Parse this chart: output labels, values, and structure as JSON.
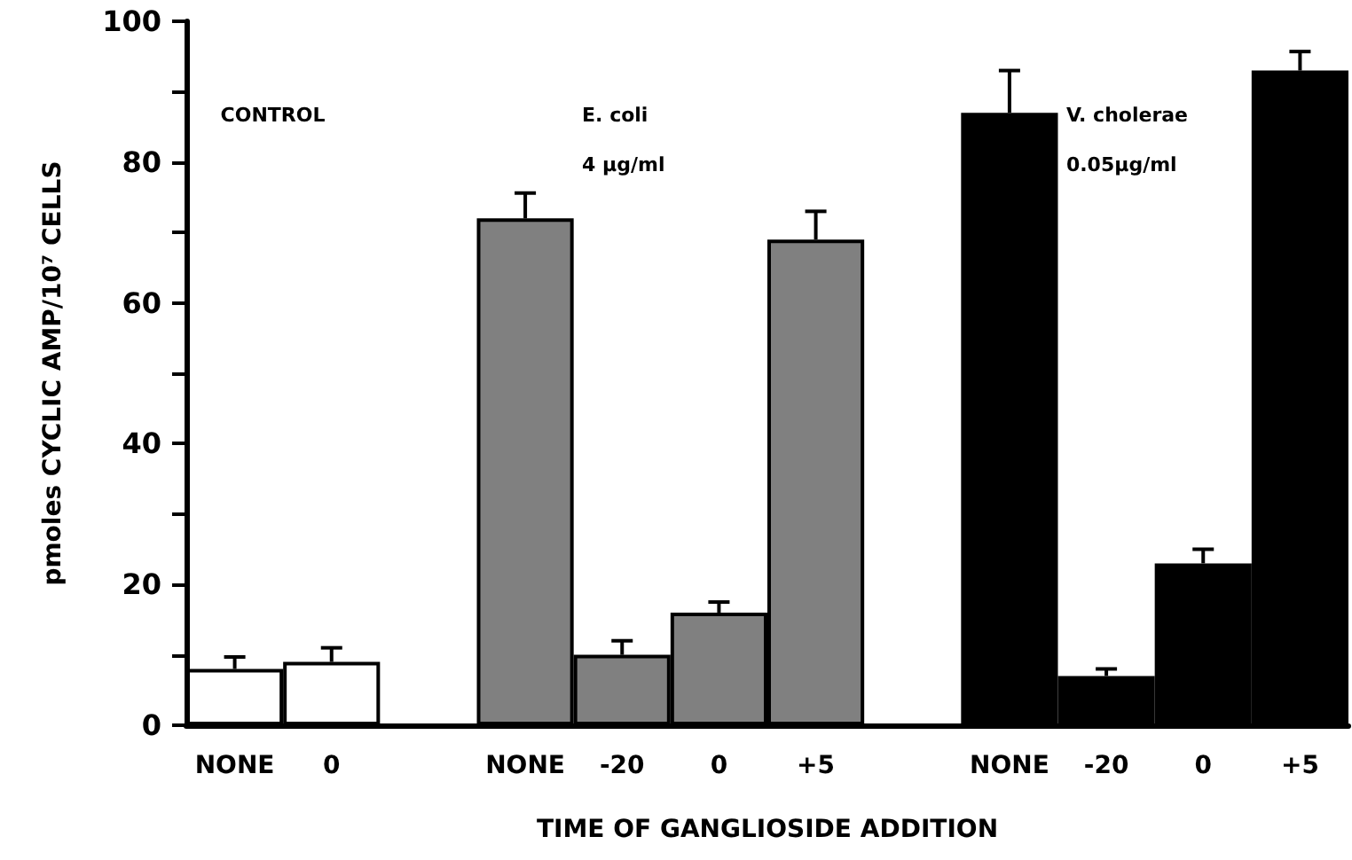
{
  "chart_data": {
    "type": "bar",
    "xlabel": "TIME OF GANGLIOSIDE ADDITION",
    "ylabel": "pmoles CYCLIC AMP/10⁷ CELLS",
    "categories": [
      "NONE",
      "0",
      null,
      "NONE",
      "-20",
      "0",
      "+5",
      null,
      "NONE",
      "-20",
      "0",
      "+5"
    ],
    "series": [
      {
        "color": "#ffffff",
        "values": [
          8,
          9,
          null,
          null,
          null,
          null,
          null,
          null,
          null,
          null,
          null,
          null
        ],
        "errors": [
          [
            8,
            9.7
          ],
          [
            9,
            11
          ],
          null,
          null,
          null,
          null,
          null,
          null,
          null,
          null,
          null,
          null
        ]
      },
      {
        "color": "#808080",
        "values": [
          null,
          null,
          null,
          72,
          10,
          16,
          69,
          null,
          null,
          null,
          null,
          null
        ],
        "errors": [
          null,
          null,
          null,
          [
            72,
            75.6
          ],
          [
            10,
            12
          ],
          [
            16,
            17.5
          ],
          [
            69,
            73
          ],
          null,
          null,
          null,
          null,
          null
        ]
      },
      {
        "color": "#000000",
        "values": [
          null,
          null,
          null,
          null,
          null,
          null,
          null,
          null,
          87,
          7,
          23,
          93
        ],
        "errors": [
          null,
          null,
          null,
          null,
          null,
          null,
          null,
          null,
          [
            87,
            93
          ],
          [
            7,
            8
          ],
          [
            23,
            25
          ],
          [
            93,
            95.7
          ]
        ]
      }
    ],
    "annotations": [
      "CONTROL",
      "E. coli",
      "4 µg/ml",
      "V. cholerae",
      "0.05µg/ml"
    ],
    "ylim": [
      0,
      100
    ],
    "yticks": [
      0,
      {
        "value": 10,
        "label": null
      },
      20,
      {
        "value": 30,
        "label": null
      },
      40,
      {
        "value": 50,
        "label": null
      },
      60,
      {
        "value": 70,
        "label": null
      },
      80,
      {
        "value": 90,
        "label": null
      },
      100
    ]
  }
}
